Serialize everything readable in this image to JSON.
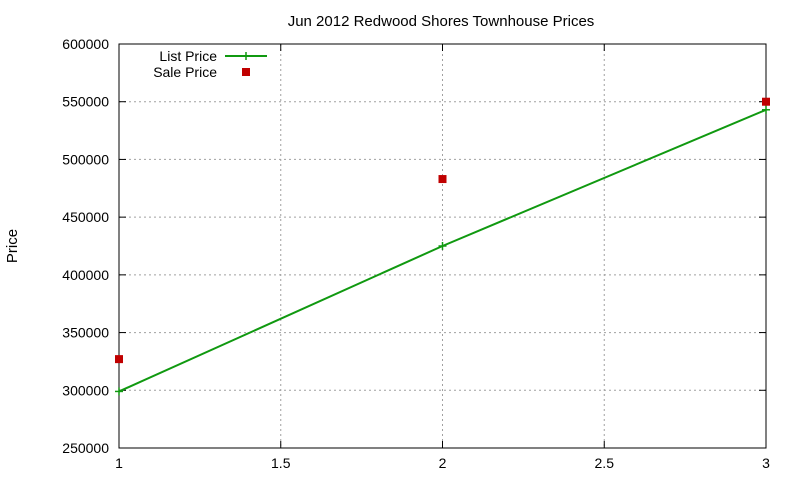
{
  "chart_data": {
    "type": "line",
    "title": "Jun 2012 Redwood Shores Townhouse Prices",
    "xlabel": "",
    "ylabel": "Price",
    "xlim": [
      1,
      3
    ],
    "ylim": [
      250000,
      600000
    ],
    "x_ticks": [
      "1",
      "1.5",
      "2",
      "2.5",
      "3"
    ],
    "x_tick_values": [
      1,
      1.5,
      2,
      2.5,
      3
    ],
    "y_ticks": [
      "250000",
      "300000",
      "350000",
      "400000",
      "450000",
      "500000",
      "550000",
      "600000"
    ],
    "y_tick_values": [
      250000,
      300000,
      350000,
      400000,
      450000,
      500000,
      550000,
      600000
    ],
    "grid": true,
    "legend_position": "top-left",
    "series": [
      {
        "name": "List Price",
        "style": "linespoints",
        "marker": "plus",
        "color": "#109910",
        "x": [
          1,
          2,
          3
        ],
        "values": [
          299000,
          425000,
          543000
        ]
      },
      {
        "name": "Sale Price",
        "style": "points",
        "marker": "square",
        "color": "#c00000",
        "x": [
          1,
          2,
          3
        ],
        "values": [
          327000,
          483000,
          550000
        ]
      }
    ]
  }
}
